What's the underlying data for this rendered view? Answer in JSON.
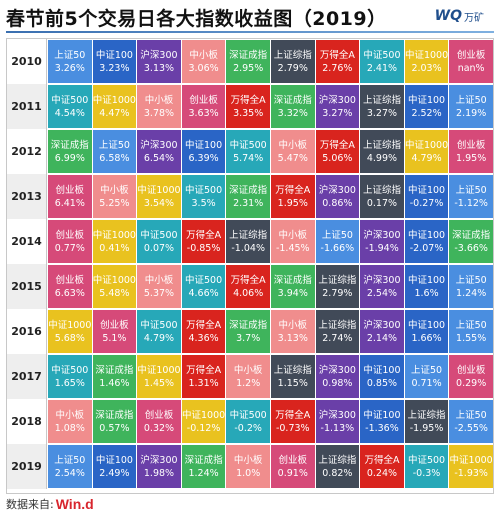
{
  "title": "春节前5个交易日各大指数收益图（2019）",
  "logo": {
    "mark": "WQ",
    "brand": "万矿"
  },
  "source": {
    "label": "数据来自:",
    "brand": "Win.d"
  },
  "colors": {
    "上证50": "#4a8ee0",
    "中证100": "#2a65c6",
    "沪深300": "#6a3fa8",
    "中小板": "#f08d8d",
    "深证成指": "#3fb45c",
    "上证综指": "#414a58",
    "万得全A": "#d9241e",
    "中证500": "#27a8b8",
    "中证1000": "#e9c21f",
    "创业板": "#d64a79"
  },
  "chart_data": {
    "type": "table",
    "title": "春节前5个交易日各大指数收益图（2019）",
    "rows": [
      {
        "year": "2010",
        "cells": [
          {
            "name": "上证50",
            "value": "3.26%"
          },
          {
            "name": "中证100",
            "value": "3.23%"
          },
          {
            "name": "沪深300",
            "value": "3.13%"
          },
          {
            "name": "中小板",
            "value": "3.06%"
          },
          {
            "name": "深证成指",
            "value": "2.95%"
          },
          {
            "name": "上证综指",
            "value": "2.79%"
          },
          {
            "name": "万得全A",
            "value": "2.76%"
          },
          {
            "name": "中证500",
            "value": "2.41%"
          },
          {
            "name": "中证1000",
            "value": "2.03%"
          },
          {
            "name": "创业板",
            "value": "nan%"
          }
        ]
      },
      {
        "year": "2011",
        "cells": [
          {
            "name": "中证500",
            "value": "4.54%"
          },
          {
            "name": "中证1000",
            "value": "4.47%"
          },
          {
            "name": "中小板",
            "value": "3.78%"
          },
          {
            "name": "创业板",
            "value": "3.63%"
          },
          {
            "name": "万得全A",
            "value": "3.35%"
          },
          {
            "name": "深证成指",
            "value": "3.32%"
          },
          {
            "name": "沪深300",
            "value": "3.27%"
          },
          {
            "name": "上证综指",
            "value": "3.27%"
          },
          {
            "name": "中证100",
            "value": "2.52%"
          },
          {
            "name": "上证50",
            "value": "2.19%"
          }
        ]
      },
      {
        "year": "2012",
        "cells": [
          {
            "name": "深证成指",
            "value": "6.99%"
          },
          {
            "name": "上证50",
            "value": "6.58%"
          },
          {
            "name": "沪深300",
            "value": "6.54%"
          },
          {
            "name": "中证100",
            "value": "6.39%"
          },
          {
            "name": "中证500",
            "value": "5.74%"
          },
          {
            "name": "中小板",
            "value": "5.47%"
          },
          {
            "name": "万得全A",
            "value": "5.06%"
          },
          {
            "name": "上证综指",
            "value": "4.99%"
          },
          {
            "name": "中证1000",
            "value": "4.79%"
          },
          {
            "name": "创业板",
            "value": "1.95%"
          }
        ]
      },
      {
        "year": "2013",
        "cells": [
          {
            "name": "创业板",
            "value": "6.41%"
          },
          {
            "name": "中小板",
            "value": "5.25%"
          },
          {
            "name": "中证1000",
            "value": "3.54%"
          },
          {
            "name": "中证500",
            "value": "3.5%"
          },
          {
            "name": "深证成指",
            "value": "2.31%"
          },
          {
            "name": "万得全A",
            "value": "1.95%"
          },
          {
            "name": "沪深300",
            "value": "0.86%"
          },
          {
            "name": "上证综指",
            "value": "0.17%"
          },
          {
            "name": "中证100",
            "value": "-0.27%"
          },
          {
            "name": "上证50",
            "value": "-1.12%"
          }
        ]
      },
      {
        "year": "2014",
        "cells": [
          {
            "name": "创业板",
            "value": "0.77%"
          },
          {
            "name": "中证1000",
            "value": "0.41%"
          },
          {
            "name": "中证500",
            "value": "0.07%"
          },
          {
            "name": "万得全A",
            "value": "-0.85%"
          },
          {
            "name": "上证综指",
            "value": "-1.04%"
          },
          {
            "name": "中小板",
            "value": "-1.45%"
          },
          {
            "name": "上证50",
            "value": "-1.66%"
          },
          {
            "name": "沪深300",
            "value": "-1.94%"
          },
          {
            "name": "中证100",
            "value": "-2.07%"
          },
          {
            "name": "深证成指",
            "value": "-3.66%"
          }
        ]
      },
      {
        "year": "2015",
        "cells": [
          {
            "name": "创业板",
            "value": "6.63%"
          },
          {
            "name": "中证1000",
            "value": "5.48%"
          },
          {
            "name": "中小板",
            "value": "5.37%"
          },
          {
            "name": "中证500",
            "value": "4.66%"
          },
          {
            "name": "万得全A",
            "value": "4.06%"
          },
          {
            "name": "深证成指",
            "value": "3.94%"
          },
          {
            "name": "上证综指",
            "value": "2.79%"
          },
          {
            "name": "沪深300",
            "value": "2.54%"
          },
          {
            "name": "中证100",
            "value": "1.6%"
          },
          {
            "name": "上证50",
            "value": "1.24%"
          }
        ]
      },
      {
        "year": "2016",
        "cells": [
          {
            "name": "中证1000",
            "value": "5.68%"
          },
          {
            "name": "创业板",
            "value": "5.1%"
          },
          {
            "name": "中证500",
            "value": "4.79%"
          },
          {
            "name": "万得全A",
            "value": "4.36%"
          },
          {
            "name": "深证成指",
            "value": "3.7%"
          },
          {
            "name": "中小板",
            "value": "3.13%"
          },
          {
            "name": "上证综指",
            "value": "2.74%"
          },
          {
            "name": "沪深300",
            "value": "2.14%"
          },
          {
            "name": "中证100",
            "value": "1.66%"
          },
          {
            "name": "上证50",
            "value": "1.55%"
          }
        ]
      },
      {
        "year": "2017",
        "cells": [
          {
            "name": "中证500",
            "value": "1.65%"
          },
          {
            "name": "深证成指",
            "value": "1.46%"
          },
          {
            "name": "中证1000",
            "value": "1.45%"
          },
          {
            "name": "万得全A",
            "value": "1.31%"
          },
          {
            "name": "中小板",
            "value": "1.2%"
          },
          {
            "name": "上证综指",
            "value": "1.15%"
          },
          {
            "name": "沪深300",
            "value": "0.98%"
          },
          {
            "name": "中证100",
            "value": "0.85%"
          },
          {
            "name": "上证50",
            "value": "0.71%"
          },
          {
            "name": "创业板",
            "value": "0.29%"
          }
        ]
      },
      {
        "year": "2018",
        "cells": [
          {
            "name": "中小板",
            "value": "1.08%"
          },
          {
            "name": "深证成指",
            "value": "0.57%"
          },
          {
            "name": "创业板",
            "value": "0.32%"
          },
          {
            "name": "中证1000",
            "value": "-0.12%"
          },
          {
            "name": "中证500",
            "value": "-0.2%"
          },
          {
            "name": "万得全A",
            "value": "-0.73%"
          },
          {
            "name": "沪深300",
            "value": "-1.13%"
          },
          {
            "name": "中证100",
            "value": "-1.36%"
          },
          {
            "name": "上证综指",
            "value": "-1.95%"
          },
          {
            "name": "上证50",
            "value": "-2.55%"
          }
        ]
      },
      {
        "year": "2019",
        "cells": [
          {
            "name": "上证50",
            "value": "2.54%"
          },
          {
            "name": "中证100",
            "value": "2.49%"
          },
          {
            "name": "沪深300",
            "value": "1.98%"
          },
          {
            "name": "深证成指",
            "value": "1.24%"
          },
          {
            "name": "中小板",
            "value": "1.0%"
          },
          {
            "name": "创业板",
            "value": "0.91%"
          },
          {
            "name": "上证综指",
            "value": "0.82%"
          },
          {
            "name": "万得全A",
            "value": "0.24%"
          },
          {
            "name": "中证500",
            "value": "-0.3%"
          },
          {
            "name": "中证1000",
            "value": "-1.93%"
          }
        ]
      }
    ]
  }
}
